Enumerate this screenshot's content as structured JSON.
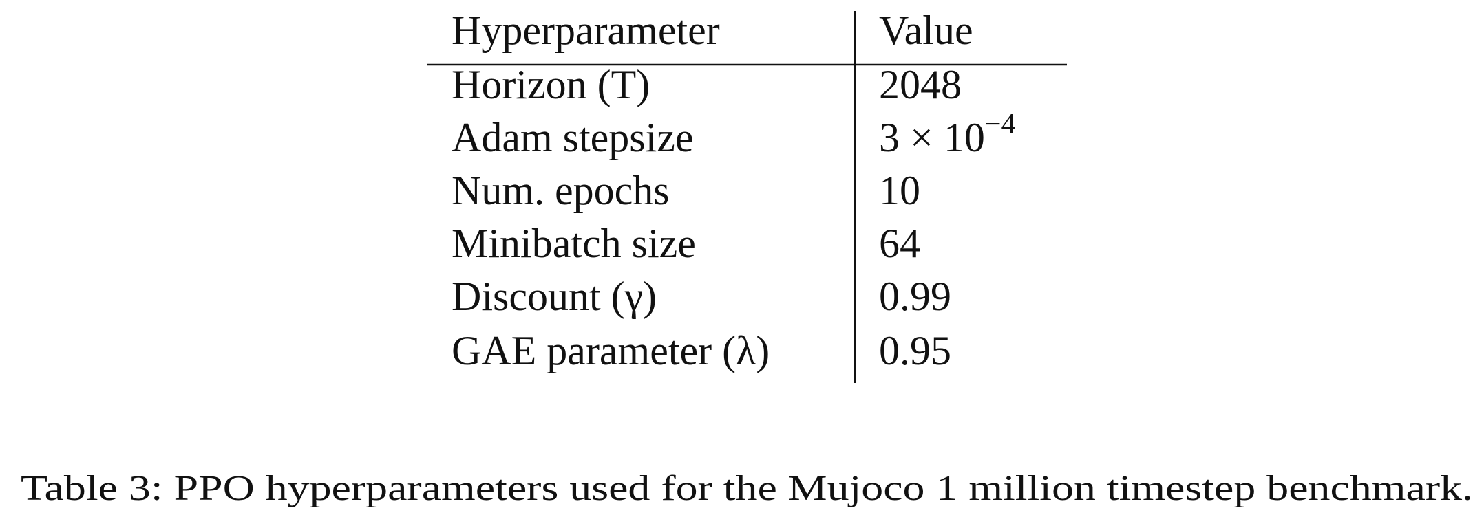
{
  "table": {
    "header": [
      "Hyperparameter",
      "Value"
    ],
    "rows": [
      [
        "Horizon (T)",
        "2048"
      ],
      [
        "Adam stepsize",
        {
          "mantissa": "3 × 10",
          "exponent": "−4"
        }
      ],
      [
        "Num. epochs",
        "10"
      ],
      [
        "Minibatch size",
        "64"
      ],
      [
        "Discount (γ)",
        "0.99"
      ],
      [
        "GAE parameter (λ)",
        "0.95"
      ]
    ]
  },
  "caption": "Table 3: PPO hyperparameters used for the Mujoco 1 million timestep benchmark."
}
